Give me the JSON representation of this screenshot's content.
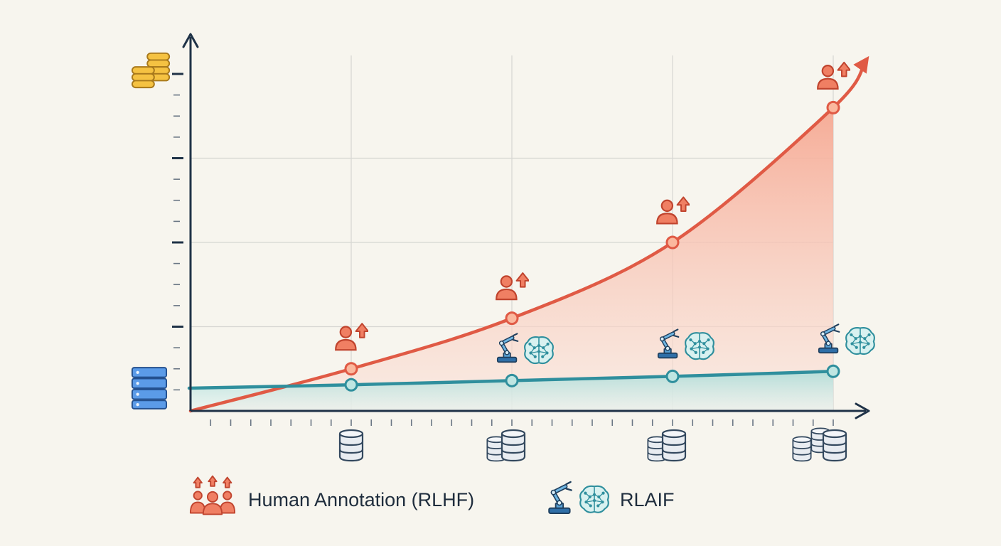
{
  "chart_data": {
    "type": "area",
    "title": "",
    "xlabel": "",
    "ylabel": "",
    "x": [
      0,
      1,
      2,
      3,
      4
    ],
    "xlim": [
      0,
      4.35
    ],
    "ylim": [
      0,
      4
    ],
    "grid": true,
    "legend_position": "bottom",
    "series": [
      {
        "name": "Human Annotation (RLHF)",
        "color": "#e05a45",
        "fill": "#f6b8a8",
        "icon": "person-up-icon",
        "values": [
          0,
          0.5,
          1.1,
          2.0,
          3.6
        ],
        "markers": [
          false,
          true,
          true,
          true,
          true
        ]
      },
      {
        "name": "RLAIF",
        "color": "#2f8f9d",
        "fill": "#bfe2df",
        "icon": "robot-arm-brain-icon",
        "values": [
          0.27,
          0.31,
          0.36,
          0.41,
          0.47
        ],
        "markers": [
          false,
          true,
          true,
          true,
          true
        ]
      }
    ],
    "axis_icons": {
      "y_top": "coin-stack-icon",
      "y_bottom": "server-stack-icon",
      "x_ticks": "database-stack-icon"
    }
  },
  "legend": {
    "rlhf_label": "Human Annotation (RLHF)",
    "rlaif_label": "RLAIF"
  }
}
